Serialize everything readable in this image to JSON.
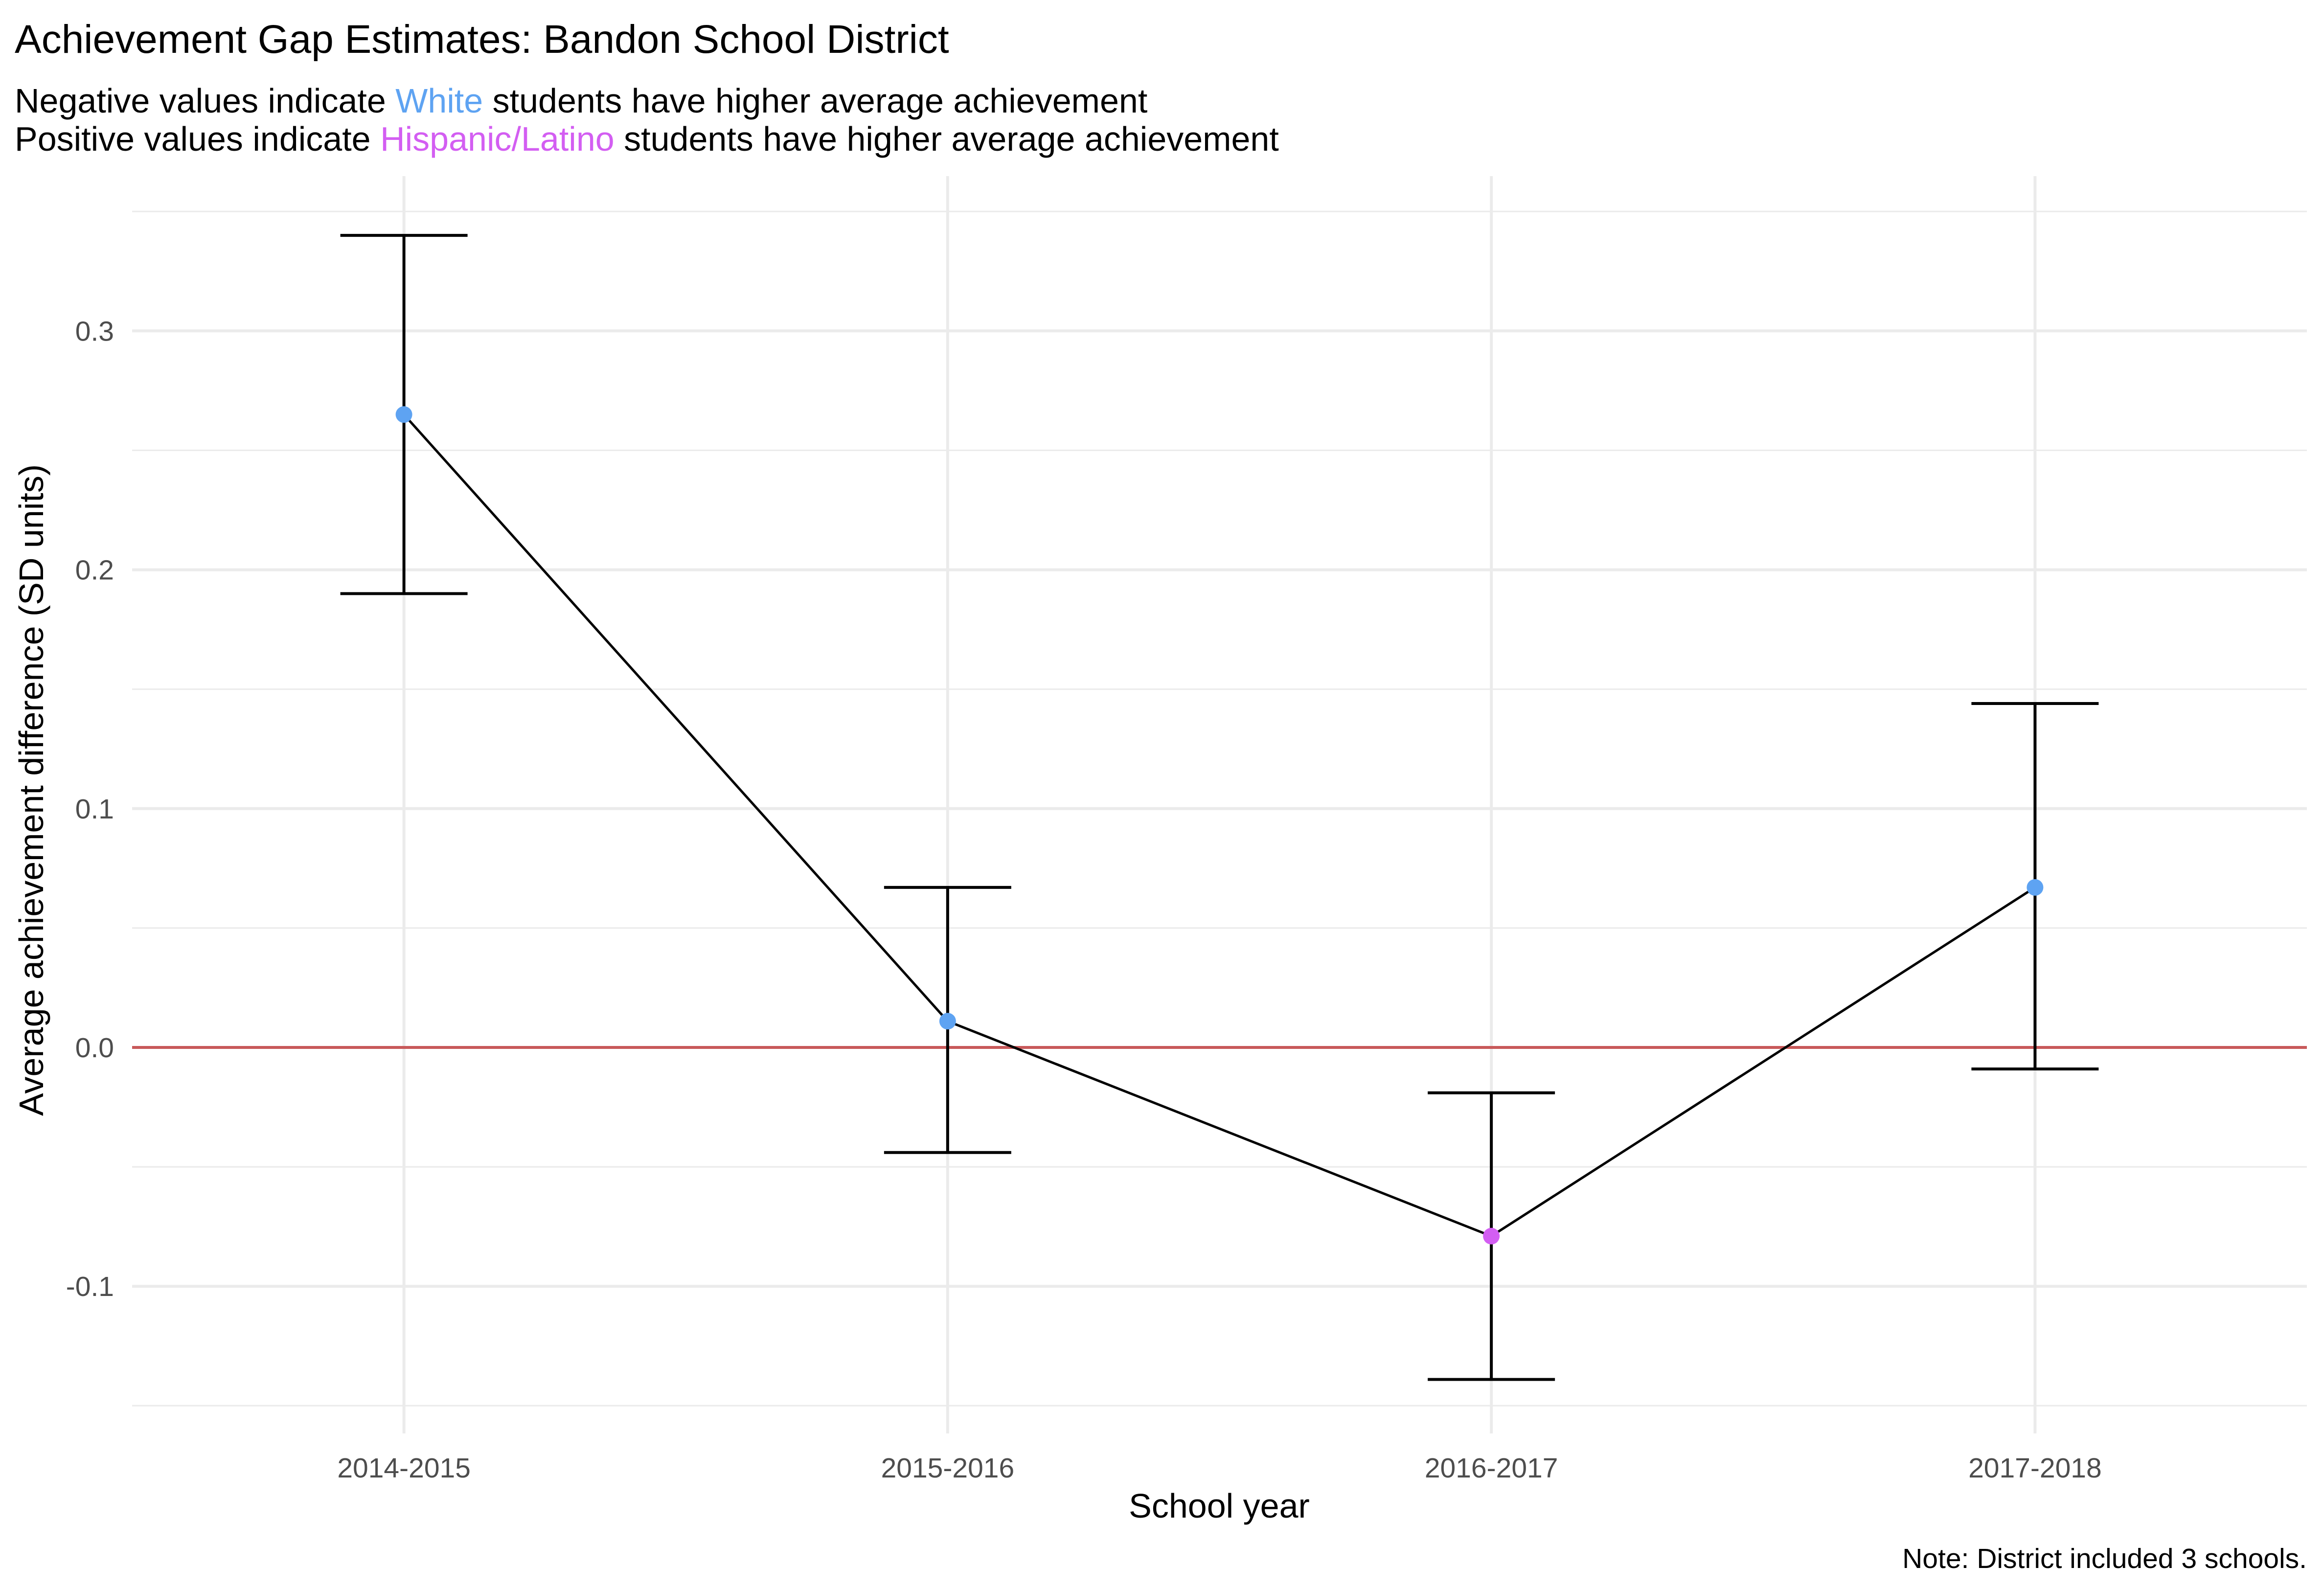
{
  "chart_data": {
    "type": "scatter",
    "title": "Achievement Gap Estimates: Bandon School District",
    "subtitle": [
      {
        "parts": [
          {
            "text": "Negative values indicate "
          },
          {
            "text": "White",
            "color": "#5ea3f2"
          },
          {
            "text": " students have higher average achievement"
          }
        ]
      },
      {
        "parts": [
          {
            "text": "Positive values indicate "
          },
          {
            "text": "Hispanic/Latino",
            "color": "#d35ef2"
          },
          {
            "text": " students have higher average achievement"
          }
        ]
      }
    ],
    "xlabel": "School year",
    "ylabel": "Average achievement difference (SD units)",
    "caption": "Note: District included 3 schools.",
    "categories": [
      "2014-2015",
      "2015-2016",
      "2016-2017",
      "2017-2018"
    ],
    "values": [
      0.265,
      0.011,
      -0.079,
      0.067
    ],
    "lower": [
      0.19,
      -0.044,
      -0.139,
      -0.009
    ],
    "upper": [
      0.34,
      0.067,
      -0.019,
      0.144
    ],
    "point_colors": [
      "#5ea3f2",
      "#5ea3f2",
      "#d35ef2",
      "#5ea3f2"
    ],
    "y_ticks": [
      -0.1,
      0.0,
      0.1,
      0.2,
      0.3
    ],
    "y_tick_labels": [
      "-0.1",
      "0.0",
      "0.1",
      "0.2",
      "0.3"
    ],
    "ylim": [
      -0.15,
      0.35
    ],
    "reference_line": {
      "y": 0,
      "color": "#c8595a"
    },
    "line_color": "#000000",
    "grid": true,
    "legend": "none"
  }
}
